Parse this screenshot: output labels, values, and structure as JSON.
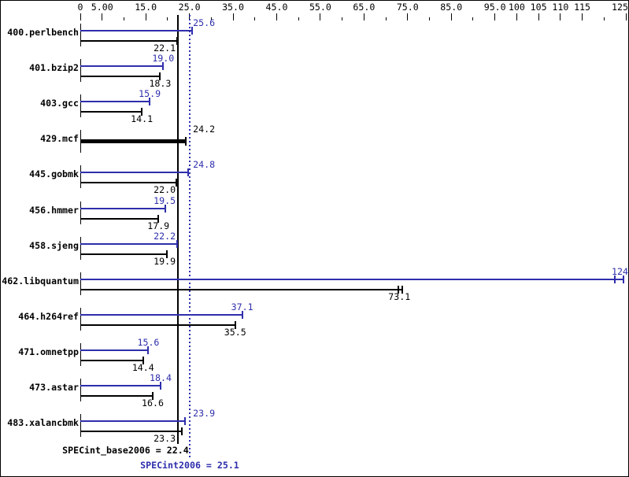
{
  "chart_data": {
    "type": "bar",
    "orientation": "horizontal",
    "title": "",
    "axis": {
      "position": "top",
      "range": [
        0,
        126
      ],
      "major_ticks": [
        {
          "value": 0,
          "label": "0"
        },
        {
          "value": 5,
          "label": "5.00"
        },
        {
          "value": 15,
          "label": "15.0"
        },
        {
          "value": 25,
          "label": "25.0"
        },
        {
          "value": 35,
          "label": "35.0"
        },
        {
          "value": 45,
          "label": "45.0"
        },
        {
          "value": 55,
          "label": "55.0"
        },
        {
          "value": 65,
          "label": "65.0"
        },
        {
          "value": 75,
          "label": "75.0"
        },
        {
          "value": 85,
          "label": "85.0"
        },
        {
          "value": 95,
          "label": "95.0"
        },
        {
          "value": 100,
          "label": "100"
        },
        {
          "value": 105,
          "label": "105"
        },
        {
          "value": 110,
          "label": "110"
        },
        {
          "value": 115,
          "label": "115"
        },
        {
          "value": 125,
          "label": "125"
        }
      ],
      "minor_ticks": [
        10,
        20,
        30,
        40,
        50,
        60,
        70,
        80,
        90,
        120
      ]
    },
    "series_names": [
      "peak (SPECint2006)",
      "base (SPECint_base2006)"
    ],
    "benchmarks": [
      {
        "name": "400.perlbench",
        "peak": 25.6,
        "peak_label": "25.6",
        "base": 22.1,
        "base_label": "22.1"
      },
      {
        "name": "401.bzip2",
        "peak": 19.0,
        "peak_label": "19.0",
        "base": 18.3,
        "base_label": "18.3"
      },
      {
        "name": "403.gcc",
        "peak": 15.9,
        "peak_label": "15.9",
        "base": 14.1,
        "base_label": "14.1"
      },
      {
        "name": "429.mcf",
        "peak": 24.2,
        "peak_label": "24.2",
        "base": 24.2,
        "base_label": "24.2",
        "merged": true
      },
      {
        "name": "445.gobmk",
        "peak": 24.8,
        "peak_label": "24.8",
        "base": 22.0,
        "base_label": "22.0"
      },
      {
        "name": "456.hmmer",
        "peak": 19.5,
        "peak_label": "19.5",
        "base": 17.9,
        "base_label": "17.9"
      },
      {
        "name": "458.sjeng",
        "peak": 22.2,
        "peak_label": "22.2",
        "base": 19.9,
        "base_label": "19.9"
      },
      {
        "name": "462.libquantum",
        "peak": 124,
        "peak_label": "124",
        "base": 73.1,
        "base_label": "73.1",
        "peak_caps": [
          122.4,
          124.4
        ],
        "base_caps": [
          72.9,
          73.7
        ]
      },
      {
        "name": "464.h264ref",
        "peak": 37.1,
        "peak_label": "37.1",
        "base": 35.5,
        "base_label": "35.5"
      },
      {
        "name": "471.omnetpp",
        "peak": 15.6,
        "peak_label": "15.6",
        "base": 14.4,
        "base_label": "14.4"
      },
      {
        "name": "473.astar",
        "peak": 18.4,
        "peak_label": "18.4",
        "base": 16.6,
        "base_label": "16.6"
      },
      {
        "name": "483.xalancbmk",
        "peak": 23.9,
        "peak_label": "23.9",
        "base": 23.3,
        "base_label": "23.3"
      }
    ],
    "summary": {
      "base_text": "SPECint_base2006 = 22.4",
      "base_value": 22.4,
      "peak_text": "SPECint2006 = 25.1",
      "peak_value": 25.1
    },
    "legend": "none",
    "grid": false
  },
  "colors": {
    "peak": "#2e2eac",
    "base": "#000000",
    "background": "#ffffff",
    "border": "#000000"
  }
}
